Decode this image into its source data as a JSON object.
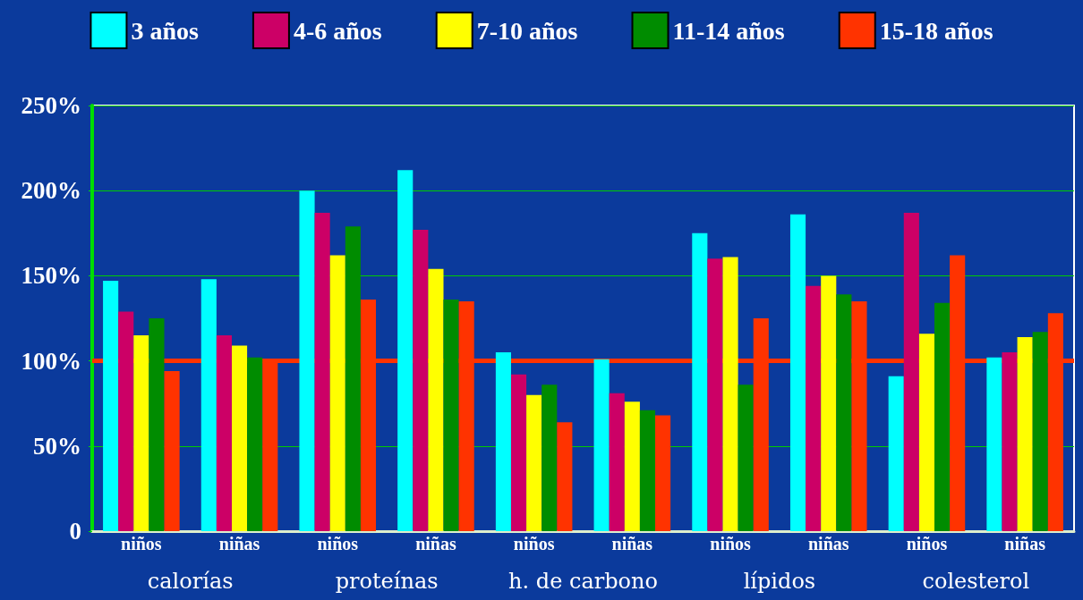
{
  "chart_data": {
    "type": "bar",
    "categories": [
      "niños",
      "niñas",
      "niños",
      "niñas",
      "niños",
      "niñas",
      "niños",
      "niñas",
      "niños",
      "niñas"
    ],
    "series": [
      {
        "name": "3 años",
        "color": "#00ffff",
        "values": [
          147,
          148,
          200,
          212,
          105,
          101,
          175,
          186,
          91,
          102
        ]
      },
      {
        "name": "4-6 años",
        "color": "#cc0066",
        "values": [
          129,
          115,
          187,
          177,
          92,
          81,
          160,
          144,
          187,
          105
        ]
      },
      {
        "name": "7-10 años",
        "color": "#ffff00",
        "values": [
          115,
          109,
          162,
          154,
          80,
          76,
          161,
          150,
          116,
          114
        ]
      },
      {
        "name": "11-14 años",
        "color": "#008c00",
        "values": [
          125,
          102,
          179,
          136,
          86,
          71,
          86,
          139,
          134,
          117
        ]
      },
      {
        "name": "15-18 años",
        "color": "#ff3300",
        "values": [
          94,
          99,
          136,
          135,
          64,
          68,
          125,
          135,
          162,
          128
        ]
      }
    ],
    "ylim": [
      0,
      250
    ],
    "yticks": [
      {
        "value": 0,
        "label": "0"
      },
      {
        "value": 50,
        "label": "50%"
      },
      {
        "value": 100,
        "label": "100%"
      },
      {
        "value": 150,
        "label": "150%"
      },
      {
        "value": 200,
        "label": "200%"
      },
      {
        "value": 250,
        "label": "250%"
      }
    ],
    "ref_lines": [
      {
        "axis": "y",
        "value": 100,
        "color": "#ff3300"
      }
    ],
    "annotations": [
      "calorías",
      "proteínas",
      "h. de carbono",
      "lípidos",
      "colesterol"
    ],
    "grid": "y",
    "legend": "top"
  }
}
